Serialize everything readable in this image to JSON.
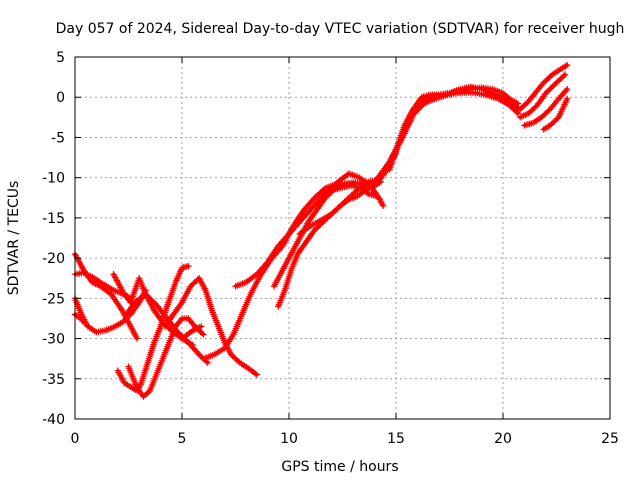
{
  "chart_data": {
    "type": "line",
    "title": "Day 057 of 2024, Sidereal Day-to-day VTEC variation (SDTVAR) for receiver hugh",
    "xlabel": "GPS time / hours",
    "ylabel": "SDTVAR / TECUs",
    "xlim": [
      0,
      25
    ],
    "ylim": [
      -40,
      5
    ],
    "x_ticks": [
      0,
      5,
      10,
      15,
      20,
      25
    ],
    "y_ticks": [
      5,
      0,
      -5,
      -10,
      -15,
      -20,
      -25,
      -30,
      -35,
      -40
    ],
    "grid": true,
    "marker": "plus",
    "series_color": "#ff0000",
    "series": [
      {
        "name": "track-1",
        "points": [
          [
            0.0,
            -19.5
          ],
          [
            0.4,
            -21.5
          ],
          [
            0.8,
            -23.0
          ],
          [
            1.2,
            -23.5
          ],
          [
            1.7,
            -24.5
          ],
          [
            2.2,
            -26.5
          ],
          [
            2.6,
            -28.5
          ],
          [
            2.9,
            -30.0
          ]
        ]
      },
      {
        "name": "track-2",
        "points": [
          [
            0.0,
            -22.0
          ],
          [
            0.4,
            -21.8
          ],
          [
            0.9,
            -22.5
          ],
          [
            1.3,
            -23.2
          ],
          [
            1.8,
            -24.0
          ],
          [
            2.3,
            -24.5
          ],
          [
            2.6,
            -25.0
          ]
        ]
      },
      {
        "name": "track-3",
        "points": [
          [
            0.0,
            -25.0
          ],
          [
            0.3,
            -27.0
          ],
          [
            0.6,
            -28.5
          ],
          [
            1.0,
            -29.2
          ],
          [
            1.4,
            -29.0
          ],
          [
            1.8,
            -28.6
          ],
          [
            2.2,
            -28.0
          ],
          [
            2.6,
            -27.0
          ],
          [
            3.0,
            -25.5
          ],
          [
            3.3,
            -24.0
          ]
        ]
      },
      {
        "name": "track-4",
        "points": [
          [
            0.0,
            -27.0
          ],
          [
            0.3,
            -27.6
          ],
          [
            0.5,
            -28.2
          ]
        ]
      },
      {
        "name": "track-5",
        "points": [
          [
            1.8,
            -22.0
          ],
          [
            2.0,
            -23.0
          ],
          [
            2.3,
            -24.5
          ],
          [
            2.6,
            -25.5
          ],
          [
            3.0,
            -22.5
          ],
          [
            3.3,
            -24.5
          ],
          [
            3.7,
            -26.5
          ],
          [
            4.1,
            -28.0
          ],
          [
            4.5,
            -29.0
          ],
          [
            5.0,
            -30.0
          ],
          [
            5.5,
            -30.8
          ]
        ]
      },
      {
        "name": "track-6",
        "points": [
          [
            2.4,
            -27.0
          ],
          [
            2.8,
            -25.5
          ],
          [
            3.3,
            -24.5
          ],
          [
            3.8,
            -25.8
          ],
          [
            4.3,
            -27.5
          ],
          [
            4.8,
            -29.2
          ],
          [
            5.3,
            -30.5
          ],
          [
            5.8,
            -32.0
          ],
          [
            6.2,
            -33.0
          ]
        ]
      },
      {
        "name": "track-7",
        "points": [
          [
            2.0,
            -34.0
          ],
          [
            2.3,
            -35.5
          ],
          [
            2.6,
            -36.0
          ],
          [
            2.9,
            -36.5
          ],
          [
            3.1,
            -35.5
          ],
          [
            3.4,
            -33.0
          ],
          [
            3.7,
            -30.5
          ],
          [
            4.0,
            -28.5
          ],
          [
            4.3,
            -26.0
          ],
          [
            4.7,
            -23.0
          ],
          [
            5.0,
            -21.2
          ],
          [
            5.3,
            -21.0
          ]
        ]
      },
      {
        "name": "track-8",
        "points": [
          [
            2.5,
            -33.5
          ],
          [
            2.8,
            -35.5
          ],
          [
            3.0,
            -36.5
          ],
          [
            3.2,
            -37.2
          ],
          [
            3.5,
            -36.5
          ],
          [
            3.8,
            -34.5
          ],
          [
            4.1,
            -32.5
          ],
          [
            4.4,
            -30.5
          ],
          [
            4.7,
            -28.5
          ],
          [
            5.0,
            -27.5
          ],
          [
            5.3,
            -27.5
          ],
          [
            5.6,
            -28.5
          ],
          [
            6.0,
            -29.5
          ]
        ]
      },
      {
        "name": "track-9",
        "points": [
          [
            4.2,
            -28.5
          ],
          [
            4.6,
            -27.0
          ],
          [
            5.0,
            -25.5
          ],
          [
            5.4,
            -23.5
          ],
          [
            5.8,
            -22.5
          ],
          [
            6.1,
            -24.0
          ],
          [
            6.4,
            -26.5
          ],
          [
            6.7,
            -28.5
          ],
          [
            7.0,
            -30.5
          ],
          [
            7.3,
            -32.0
          ],
          [
            7.7,
            -33.0
          ],
          [
            8.1,
            -33.7
          ],
          [
            8.5,
            -34.5
          ]
        ]
      },
      {
        "name": "track-10",
        "points": [
          [
            5.0,
            -30.0
          ],
          [
            5.5,
            -29.0
          ],
          [
            5.9,
            -28.5
          ]
        ]
      },
      {
        "name": "track-11",
        "points": [
          [
            6.0,
            -32.5
          ],
          [
            6.5,
            -32.0
          ],
          [
            7.0,
            -31.2
          ],
          [
            7.4,
            -29.5
          ],
          [
            7.8,
            -27.0
          ],
          [
            8.2,
            -24.5
          ],
          [
            8.7,
            -22.0
          ],
          [
            9.2,
            -20.0
          ],
          [
            9.7,
            -18.5
          ],
          [
            10.2,
            -16.0
          ],
          [
            10.7,
            -14.0
          ],
          [
            11.2,
            -12.5
          ],
          [
            11.7,
            -11.3
          ],
          [
            12.2,
            -10.8
          ],
          [
            12.7,
            -10.8
          ],
          [
            13.2,
            -10.7
          ],
          [
            13.7,
            -10.5
          ],
          [
            14.2,
            -10.3
          ],
          [
            14.6,
            -9.0
          ],
          [
            15.0,
            -6.5
          ],
          [
            15.4,
            -3.5
          ],
          [
            15.8,
            -1.5
          ],
          [
            16.2,
            -0.5
          ],
          [
            16.6,
            0.0
          ],
          [
            17.0,
            0.3
          ],
          [
            17.5,
            0.5
          ],
          [
            18.0,
            0.8
          ],
          [
            18.5,
            1.0
          ],
          [
            19.0,
            1.2
          ],
          [
            19.5,
            1.0
          ],
          [
            20.0,
            0.5
          ],
          [
            20.3,
            -0.2
          ],
          [
            20.7,
            -0.8
          ]
        ]
      },
      {
        "name": "track-12",
        "points": [
          [
            7.5,
            -23.5
          ],
          [
            8.0,
            -23.0
          ],
          [
            8.5,
            -22.0
          ],
          [
            9.0,
            -20.5
          ],
          [
            9.5,
            -18.5
          ],
          [
            10.0,
            -17.0
          ],
          [
            10.5,
            -15.5
          ],
          [
            11.0,
            -14.0
          ],
          [
            11.5,
            -12.5
          ],
          [
            12.0,
            -11.5
          ],
          [
            12.5,
            -10.8
          ],
          [
            13.0,
            -10.6
          ],
          [
            13.5,
            -10.8
          ],
          [
            14.0,
            -11.0
          ],
          [
            14.3,
            -10.5
          ]
        ]
      },
      {
        "name": "track-13",
        "points": [
          [
            9.3,
            -23.5
          ],
          [
            9.7,
            -21.5
          ],
          [
            10.1,
            -19.5
          ],
          [
            10.5,
            -17.5
          ],
          [
            10.9,
            -15.5
          ],
          [
            11.3,
            -14.0
          ],
          [
            11.7,
            -12.5
          ],
          [
            12.1,
            -11.5
          ],
          [
            12.5,
            -11.2
          ],
          [
            12.9,
            -11.0
          ],
          [
            13.3,
            -11.2
          ],
          [
            13.7,
            -12.0
          ],
          [
            14.1,
            -12.3
          ]
        ]
      },
      {
        "name": "track-14",
        "points": [
          [
            9.5,
            -26.0
          ],
          [
            9.8,
            -24.0
          ],
          [
            10.1,
            -21.5
          ],
          [
            10.4,
            -19.5
          ],
          [
            10.8,
            -18.0
          ],
          [
            11.2,
            -16.5
          ],
          [
            11.6,
            -15.5
          ],
          [
            12.0,
            -14.5
          ],
          [
            12.4,
            -13.5
          ],
          [
            12.8,
            -12.5
          ],
          [
            13.2,
            -11.5
          ],
          [
            13.6,
            -11.0
          ],
          [
            14.0,
            -10.5
          ],
          [
            14.3,
            -9.5
          ],
          [
            14.7,
            -8.0
          ],
          [
            15.0,
            -6.5
          ]
        ]
      },
      {
        "name": "track-15",
        "points": [
          [
            10.5,
            -17.0
          ],
          [
            11.0,
            -16.0
          ],
          [
            11.5,
            -15.3
          ],
          [
            12.0,
            -14.5
          ],
          [
            12.4,
            -13.5
          ],
          [
            12.8,
            -12.7
          ],
          [
            13.2,
            -12.3
          ],
          [
            13.6,
            -11.5
          ],
          [
            14.0,
            -11.0
          ],
          [
            14.3,
            -10.0
          ],
          [
            14.6,
            -8.5
          ],
          [
            15.0,
            -7.0
          ]
        ]
      },
      {
        "name": "track-16",
        "points": [
          [
            11.5,
            -12.0
          ],
          [
            11.9,
            -11.5
          ],
          [
            12.3,
            -10.5
          ],
          [
            12.8,
            -9.5
          ],
          [
            13.3,
            -10.0
          ],
          [
            13.8,
            -11.0
          ],
          [
            14.2,
            -12.5
          ],
          [
            14.4,
            -13.5
          ]
        ]
      },
      {
        "name": "track-17",
        "points": [
          [
            14.7,
            -9.0
          ],
          [
            15.0,
            -6.8
          ],
          [
            15.4,
            -4.0
          ],
          [
            15.8,
            -1.5
          ],
          [
            16.2,
            0.0
          ],
          [
            16.6,
            0.3
          ],
          [
            17.0,
            0.3
          ],
          [
            17.5,
            0.5
          ],
          [
            18.0,
            1.0
          ],
          [
            18.5,
            1.3
          ],
          [
            19.0,
            1.0
          ],
          [
            19.5,
            0.5
          ],
          [
            20.0,
            0.0
          ],
          [
            20.5,
            -0.7
          ]
        ]
      },
      {
        "name": "track-18",
        "points": [
          [
            15.0,
            -6.5
          ],
          [
            15.4,
            -4.5
          ],
          [
            15.8,
            -2.2
          ],
          [
            16.3,
            -0.8
          ],
          [
            16.8,
            -0.2
          ],
          [
            17.3,
            0.2
          ],
          [
            17.8,
            0.5
          ],
          [
            18.3,
            0.6
          ],
          [
            18.8,
            0.5
          ],
          [
            19.3,
            0.2
          ],
          [
            19.8,
            -0.2
          ],
          [
            20.3,
            -1.0
          ],
          [
            20.7,
            -2.0
          ]
        ]
      },
      {
        "name": "track-19",
        "points": [
          [
            20.4,
            -0.8
          ],
          [
            20.8,
            -1.5
          ],
          [
            21.2,
            -0.5
          ],
          [
            21.5,
            0.5
          ],
          [
            21.9,
            1.8
          ],
          [
            22.3,
            2.8
          ],
          [
            22.7,
            3.5
          ],
          [
            23.0,
            4.0
          ]
        ]
      },
      {
        "name": "track-20",
        "points": [
          [
            20.8,
            -2.5
          ],
          [
            21.2,
            -2.0
          ],
          [
            21.6,
            -1.0
          ],
          [
            22.0,
            0.5
          ],
          [
            22.5,
            1.8
          ],
          [
            22.9,
            2.8
          ]
        ]
      },
      {
        "name": "track-21",
        "points": [
          [
            21.0,
            -3.5
          ],
          [
            21.4,
            -3.2
          ],
          [
            21.8,
            -2.5
          ],
          [
            22.2,
            -1.5
          ],
          [
            22.6,
            -0.2
          ],
          [
            23.0,
            1.0
          ]
        ]
      },
      {
        "name": "track-22",
        "points": [
          [
            21.9,
            -4.0
          ],
          [
            22.2,
            -3.5
          ],
          [
            22.6,
            -2.5
          ],
          [
            23.0,
            -0.2
          ]
        ]
      }
    ]
  }
}
